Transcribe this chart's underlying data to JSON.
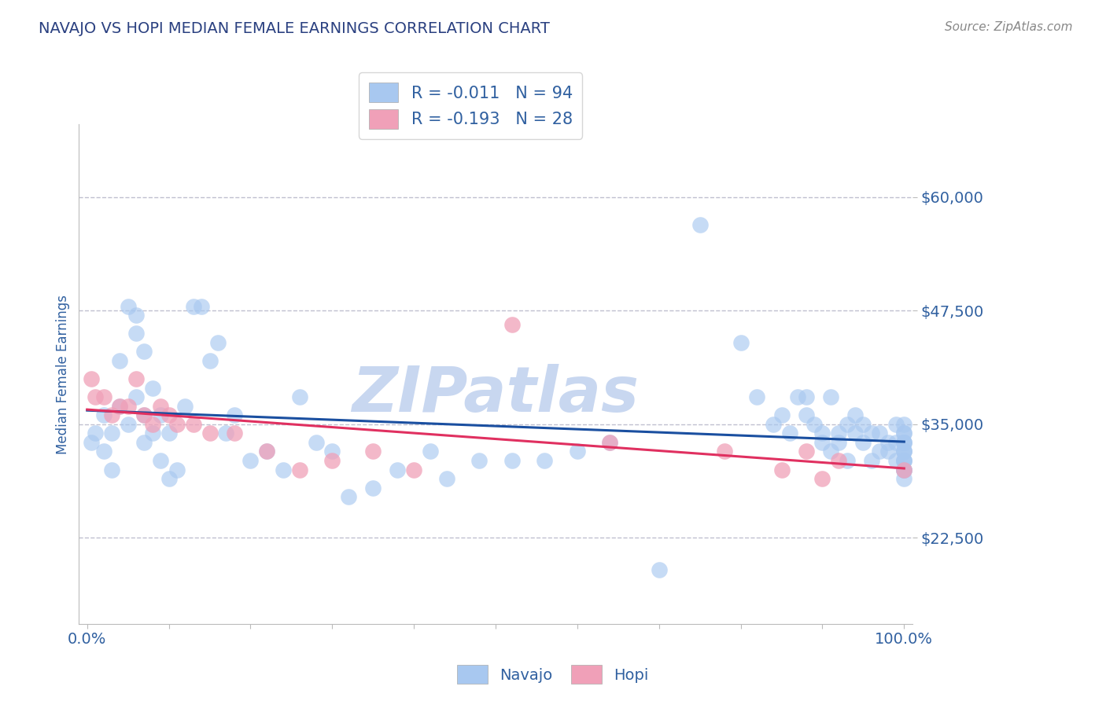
{
  "title": "NAVAJO VS HOPI MEDIAN FEMALE EARNINGS CORRELATION CHART",
  "source": "Source: ZipAtlas.com",
  "ylabel": "Median Female Earnings",
  "xlim": [
    -0.01,
    1.01
  ],
  "ylim": [
    13000,
    68000
  ],
  "yticks": [
    22500,
    35000,
    47500,
    60000
  ],
  "ytick_labels": [
    "$22,500",
    "$35,000",
    "$47,500",
    "$60,000"
  ],
  "navajo_color": "#a8c8f0",
  "hopi_color": "#f0a0b8",
  "navajo_line_color": "#1a4fa0",
  "hopi_line_color": "#e03060",
  "background_color": "#ffffff",
  "grid_color": "#c0c0d0",
  "title_color": "#2a4080",
  "axis_color": "#3060a0",
  "watermark": "ZIPatlas",
  "watermark_color_r": 200,
  "watermark_color_g": 215,
  "watermark_color_b": 240,
  "legend_label1": "R = -0.011   N = 94",
  "legend_label2": "R = -0.193   N = 28",
  "navajo_x": [
    0.005,
    0.01,
    0.02,
    0.02,
    0.03,
    0.03,
    0.04,
    0.04,
    0.05,
    0.05,
    0.06,
    0.06,
    0.06,
    0.07,
    0.07,
    0.07,
    0.08,
    0.08,
    0.09,
    0.09,
    0.1,
    0.1,
    0.11,
    0.12,
    0.13,
    0.14,
    0.15,
    0.16,
    0.17,
    0.18,
    0.2,
    0.22,
    0.24,
    0.26,
    0.28,
    0.3,
    0.32,
    0.35,
    0.38,
    0.42,
    0.44,
    0.48,
    0.52,
    0.56,
    0.6,
    0.64,
    0.7,
    0.75,
    0.8,
    0.82,
    0.84,
    0.85,
    0.86,
    0.87,
    0.88,
    0.88,
    0.89,
    0.9,
    0.9,
    0.91,
    0.91,
    0.92,
    0.92,
    0.93,
    0.93,
    0.94,
    0.94,
    0.95,
    0.95,
    0.96,
    0.96,
    0.97,
    0.97,
    0.98,
    0.98,
    0.99,
    0.99,
    0.99,
    1.0,
    1.0,
    1.0,
    1.0,
    1.0,
    1.0,
    1.0,
    1.0,
    1.0,
    1.0,
    1.0,
    1.0,
    1.0,
    1.0,
    1.0,
    1.0
  ],
  "navajo_y": [
    33000,
    34000,
    36000,
    32000,
    34000,
    30000,
    42000,
    37000,
    35000,
    48000,
    47000,
    45000,
    38000,
    43000,
    36000,
    33000,
    39000,
    34000,
    31000,
    36000,
    29000,
    34000,
    30000,
    37000,
    48000,
    48000,
    42000,
    44000,
    34000,
    36000,
    31000,
    32000,
    30000,
    38000,
    33000,
    32000,
    27000,
    28000,
    30000,
    32000,
    29000,
    31000,
    31000,
    31000,
    32000,
    33000,
    19000,
    57000,
    44000,
    38000,
    35000,
    36000,
    34000,
    38000,
    36000,
    38000,
    35000,
    33000,
    34000,
    38000,
    32000,
    34000,
    33000,
    35000,
    31000,
    34000,
    36000,
    33000,
    35000,
    31000,
    34000,
    32000,
    34000,
    32000,
    33000,
    33000,
    31000,
    35000,
    34000,
    30000,
    33000,
    32000,
    31000,
    30000,
    29000,
    35000,
    33000,
    31000,
    30000,
    34000,
    32000,
    31000,
    33000,
    32000
  ],
  "hopi_x": [
    0.005,
    0.01,
    0.02,
    0.03,
    0.04,
    0.05,
    0.06,
    0.07,
    0.08,
    0.09,
    0.1,
    0.11,
    0.13,
    0.15,
    0.18,
    0.22,
    0.26,
    0.3,
    0.35,
    0.4,
    0.52,
    0.64,
    0.78,
    0.85,
    0.88,
    0.9,
    0.92,
    1.0
  ],
  "hopi_y": [
    40000,
    38000,
    38000,
    36000,
    37000,
    37000,
    40000,
    36000,
    35000,
    37000,
    36000,
    35000,
    35000,
    34000,
    34000,
    32000,
    30000,
    31000,
    32000,
    30000,
    46000,
    33000,
    32000,
    30000,
    32000,
    29000,
    31000,
    30000
  ]
}
